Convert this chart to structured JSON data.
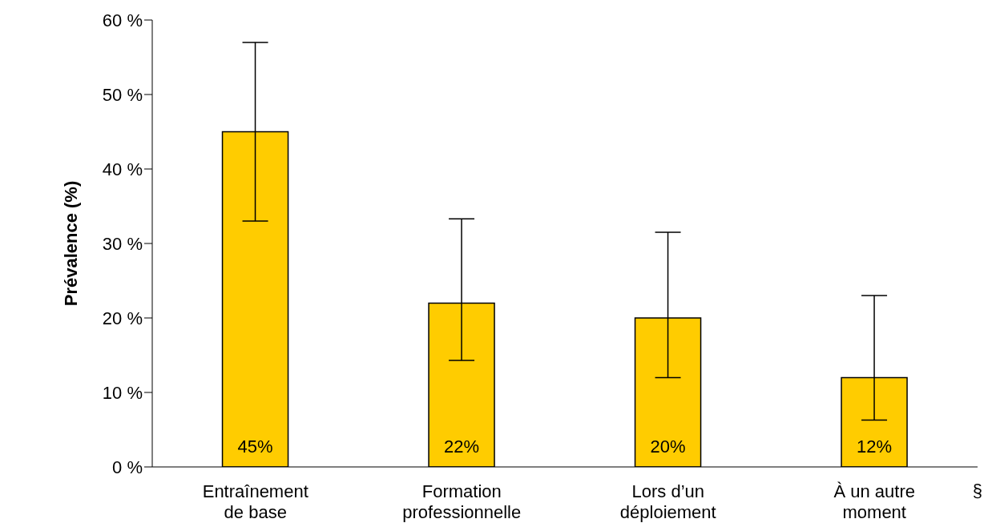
{
  "chart_data": {
    "type": "bar",
    "ylabel": "Prévalence (%)",
    "categories": [
      "Entraînement de base",
      "Formation professionnelle",
      "Lors d’un déploiement",
      "À un autre moment"
    ],
    "values": [
      45,
      22,
      20,
      12
    ],
    "errors": [
      [
        33,
        57
      ],
      [
        14.3,
        33.3
      ],
      [
        12,
        31.5
      ],
      [
        6.3,
        23
      ]
    ],
    "color": "#ffcc00",
    "ylim": [
      0,
      60
    ],
    "yticks": [
      {
        "value": 0,
        "label": "0 %"
      },
      {
        "value": 10,
        "label": "10 %"
      },
      {
        "value": 20,
        "label": "20 %"
      },
      {
        "value": 30,
        "label": "30 %"
      },
      {
        "value": 40,
        "label": "40 %"
      },
      {
        "value": 50,
        "label": "50 %"
      },
      {
        "value": 60,
        "label": "60 %"
      }
    ],
    "value_labels": [
      "45%",
      "22%",
      "20%",
      "12%"
    ],
    "grid": false,
    "legend": false,
    "annotations": [
      "§"
    ]
  }
}
